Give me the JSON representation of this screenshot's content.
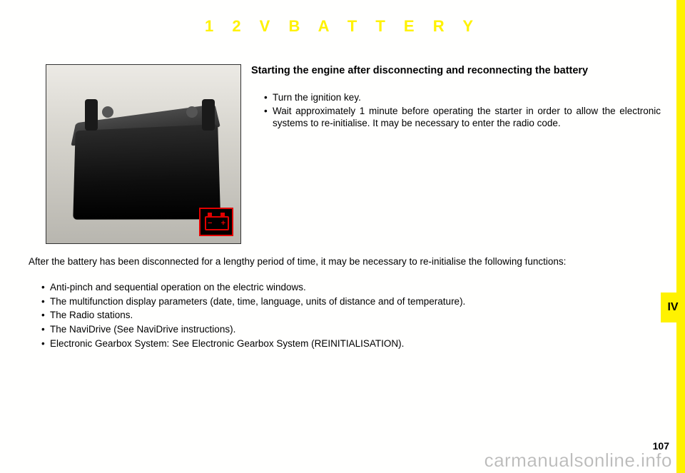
{
  "colors": {
    "yellow": "#fff200",
    "icon_red": "#e20000",
    "text": "#000000",
    "page_bg": "#ffffff"
  },
  "title": "1 2 V   B A T T E R Y",
  "section_label": "IV",
  "page_number": "107",
  "watermark": "carmanualsonline.info",
  "photo": {
    "has_battery_icon": true,
    "icon_name": "battery-icon"
  },
  "heading": "Starting  the  engine  after  disconnecting  and  reconnecting  the battery",
  "top_bullets": [
    "Turn the ignition key.",
    "Wait approximately 1 minute before operating the starter in order to allow the  electronic  systems  to  re-initialise.  It  may  be  necessary  to  enter  the radio code."
  ],
  "after_paragraph": "After the battery has been disconnected for a lengthy period of time, it may be necessary to re-initialise the following functions:",
  "bottom_bullets": [
    "Anti-pinch and sequential operation on the electric windows.",
    "The multifunction display parameters (date, time, language, units of distance and of temperature).",
    "The Radio stations.",
    "The NaviDrive (See NaviDrive instructions).",
    "Electronic Gearbox System: See Electronic Gearbox System (REINITIALISATION)."
  ]
}
